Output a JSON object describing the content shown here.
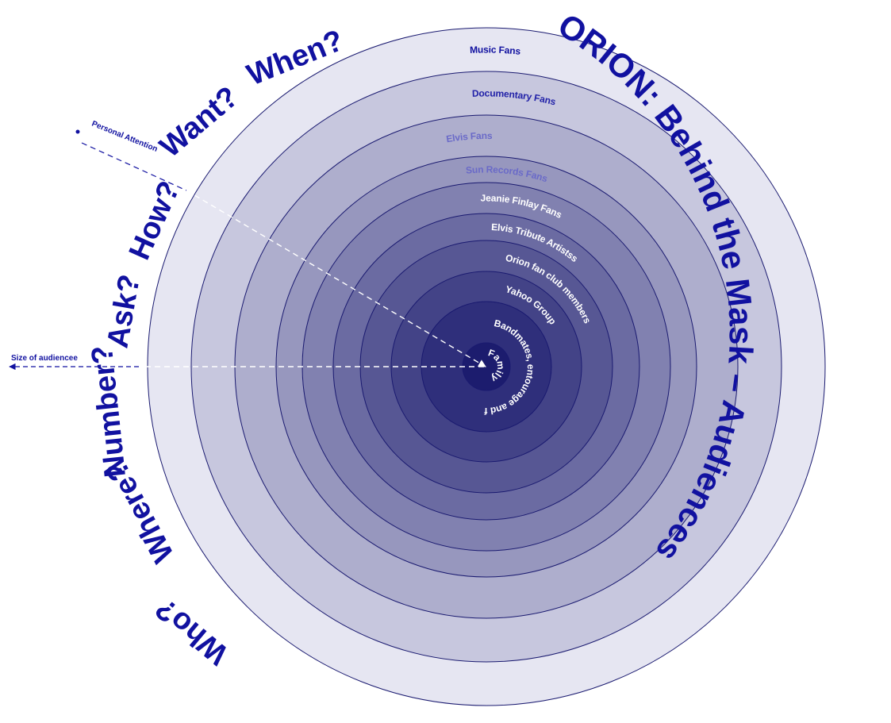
{
  "title": "ORION: Behind the Mask – Audiences",
  "questions": [
    "Who?",
    "Where?",
    "Number?",
    "Ask?",
    "How?",
    "Want?",
    "When?"
  ],
  "axes": {
    "personal_attention": "Personal Attention",
    "size_of_audience": "Size of audiencee"
  },
  "rings": [
    {
      "label": "Music Fans"
    },
    {
      "label": "Documentary Fans"
    },
    {
      "label": "Elvis Fans"
    },
    {
      "label": "Sun Records Fans"
    },
    {
      "label": "Jeanie Finlay Fans"
    },
    {
      "label": "Elvis Tribute Artistss"
    },
    {
      "label": "Orion fan club members"
    },
    {
      "label": "Yahoo Group"
    },
    {
      "label": "Bandmates, entourage and friends"
    },
    {
      "label": "Family"
    }
  ],
  "colors": {
    "text_blue": "#1111a0",
    "ring_outer": "#e6e6f2",
    "ring_inner": "#1c1c6e",
    "ring_stroke": "#1a1a70"
  }
}
